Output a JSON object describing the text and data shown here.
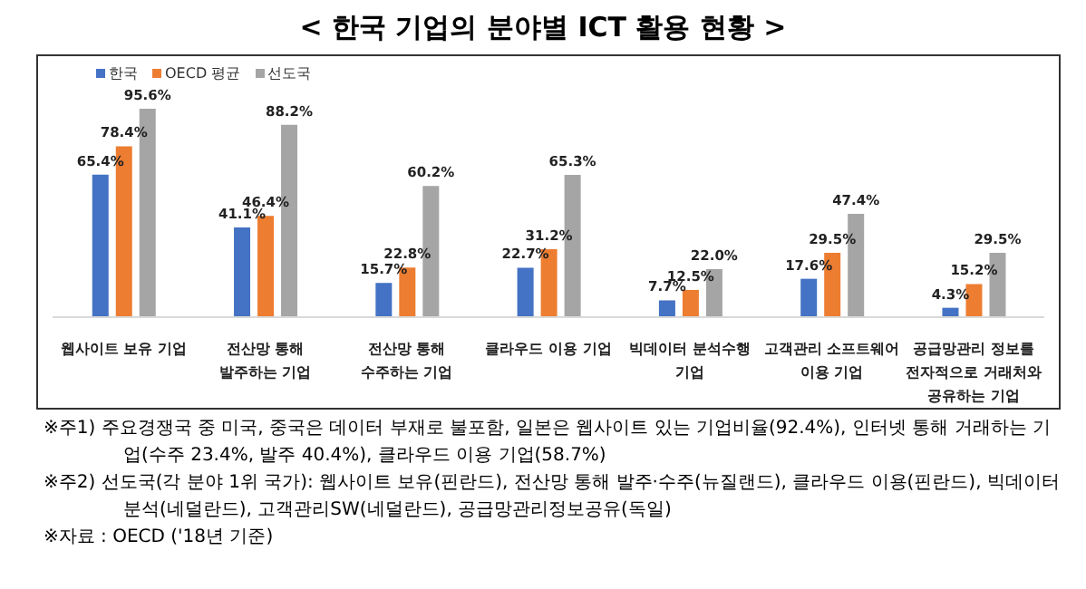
{
  "chart_data": {
    "type": "bar",
    "title": "< 한국 기업의 분야별 ICT 활용 현황 >",
    "categories": [
      "웹사이트 보유 기업",
      "전산망 통해\n발주하는 기업",
      "전산망 통해\n수주하는 기업",
      "클라우드 이용 기업",
      "빅데이터 분석수행\n기업",
      "고객관리 소프트웨어\n이용 기업",
      "공급망관리 정보를\n전자적으로 거래처와\n공유하는 기업"
    ],
    "series": [
      {
        "name": "한국",
        "color": "#4472c4",
        "values": [
          65.4,
          41.1,
          15.7,
          22.7,
          7.7,
          17.6,
          4.3
        ],
        "value_labels": [
          "65.4%",
          "41.1%",
          "15.7%",
          "22.7%",
          "7.7%",
          "17.6%",
          "4.3%"
        ]
      },
      {
        "name": "OECD 평균",
        "color": "#ed7d31",
        "values": [
          78.4,
          46.4,
          22.8,
          31.2,
          12.5,
          29.5,
          15.2
        ],
        "value_labels": [
          "78.4%",
          "46.4%",
          "22.8%",
          "31.2%",
          "12.5%",
          "29.5%",
          "15.2%"
        ]
      },
      {
        "name": "선도국",
        "color": "#a5a5a5",
        "values": [
          95.6,
          88.2,
          60.2,
          65.3,
          22.0,
          47.4,
          29.5
        ],
        "value_labels": [
          "95.6%",
          "88.2%",
          "60.2%",
          "65.3%",
          "22.0%",
          "47.4%",
          "29.5%"
        ]
      }
    ],
    "legend": "top left",
    "annotations": [
      "※주1) 주요경쟁국 중 미국, 중국은 데이터 부재로 불포함, 일본은 웹사이트 있는 기업비율(92.4%), 인터넷 통해 거래하는 기업(수주 23.4%, 발주 40.4%), 클라우드 이용 기업(58.7%)",
      "※주2) 선도국(각 분야 1위 국가): 웹사이트 보유(핀란드), 전산망 통해 발주·수주(뉴질랜드), 클라우드 이용(핀란드), 빅데이터 분석(네덜란드), 고객관리SW(네덜란드), 공급망관리정보공유(독일)",
      "※자료 : OECD ('18년 기준)"
    ]
  }
}
